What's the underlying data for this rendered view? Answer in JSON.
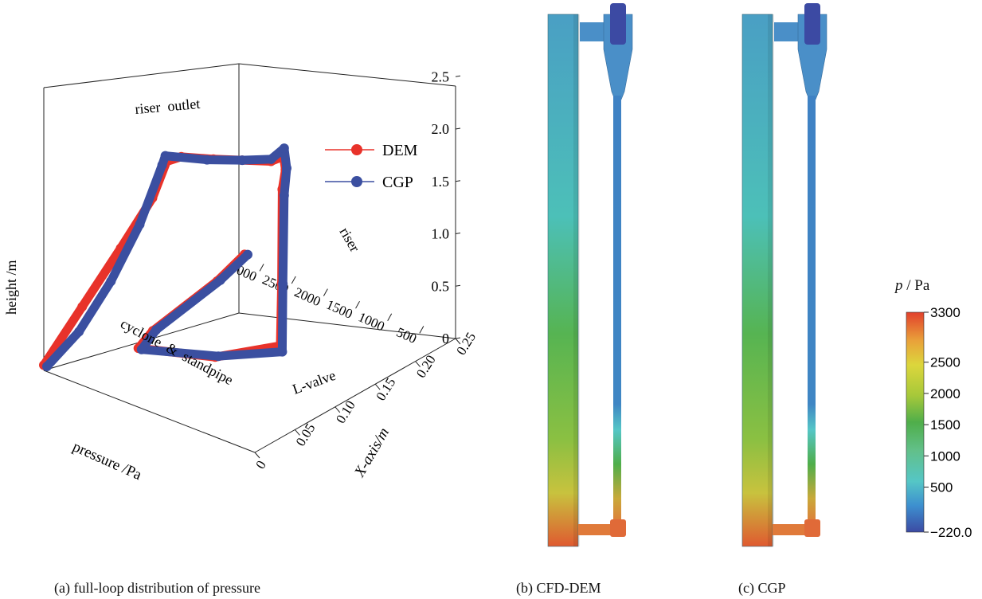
{
  "chart_data": [
    {
      "type": "line",
      "title": "",
      "zlabel": "height /m",
      "xlabel": "pressure /Pa",
      "ylabel": "X-axis/m",
      "pressure_ticks": [
        500,
        1000,
        1500,
        2000,
        2500,
        3000
      ],
      "xaxis_ticks": [
        "0",
        "0.05",
        "0.10",
        "0.15",
        "0.20",
        "0.25"
      ],
      "height_ticks": [
        "0",
        "0.5",
        "1.0",
        "1.5",
        "2.0",
        "2.5"
      ],
      "pressure_range": [
        0,
        3300
      ],
      "xaxis_range": [
        0,
        0.25
      ],
      "height_range": [
        0,
        2.7
      ],
      "legend_position": "top-right",
      "annotations": {
        "riser_outlet": "riser  outlet",
        "riser": "riser",
        "cyclone": "cyclone  &  standpipe",
        "lvalve": "L-valve"
      },
      "series": [
        {
          "name": "DEM",
          "color": "#e8322a",
          "points": [
            {
              "pressure": 3300,
              "x": 0.0,
              "height": 0.05
            },
            {
              "pressure": 2700,
              "x": 0.0,
              "height": 0.75
            },
            {
              "pressure": 2100,
              "x": 0.0,
              "height": 1.45
            },
            {
              "pressure": 1600,
              "x": 0.0,
              "height": 2.05
            },
            {
              "pressure": 1380,
              "x": 0.0,
              "height": 2.45
            },
            {
              "pressure": 1150,
              "x": 0.0,
              "height": 2.55
            },
            {
              "pressure": 900,
              "x": 0.02,
              "height": 2.5
            },
            {
              "pressure": 700,
              "x": 0.04,
              "height": 2.45
            },
            {
              "pressure": 500,
              "x": 0.06,
              "height": 2.4
            },
            {
              "pressure": 430,
              "x": 0.07,
              "height": 2.42
            },
            {
              "pressure": 400,
              "x": 0.07,
              "height": 2.3
            },
            {
              "pressure": 450,
              "x": 0.07,
              "height": 2.1
            },
            {
              "pressure": 460,
              "x": 0.07,
              "height": 1.2
            },
            {
              "pressure": 480,
              "x": 0.07,
              "height": 0.6
            },
            {
              "pressure": 1500,
              "x": 0.07,
              "height": 0.25
            },
            {
              "pressure": 2700,
              "x": 0.07,
              "height": 0.05
            },
            {
              "pressure": 2850,
              "x": 0.1,
              "height": 0.05
            },
            {
              "pressure": 3100,
              "x": 0.2,
              "height": 0.03
            },
            {
              "pressure": 3300,
              "x": 0.25,
              "height": 0.02
            }
          ]
        },
        {
          "name": "CGP",
          "color": "#3b4fa0",
          "points": [
            {
              "pressure": 3250,
              "x": 0.0,
              "height": 0.05
            },
            {
              "pressure": 2750,
              "x": 0.0,
              "height": 0.5
            },
            {
              "pressure": 2250,
              "x": 0.0,
              "height": 1.1
            },
            {
              "pressure": 1800,
              "x": 0.0,
              "height": 1.75
            },
            {
              "pressure": 1450,
              "x": 0.0,
              "height": 2.4
            },
            {
              "pressure": 1400,
              "x": 0.0,
              "height": 2.5
            },
            {
              "pressure": 1000,
              "x": 0.02,
              "height": 2.47
            },
            {
              "pressure": 700,
              "x": 0.04,
              "height": 2.45
            },
            {
              "pressure": 500,
              "x": 0.06,
              "height": 2.42
            },
            {
              "pressure": 420,
              "x": 0.07,
              "height": 2.5
            },
            {
              "pressure": 380,
              "x": 0.07,
              "height": 2.32
            },
            {
              "pressure": 420,
              "x": 0.07,
              "height": 2.05
            },
            {
              "pressure": 440,
              "x": 0.07,
              "height": 1.2
            },
            {
              "pressure": 450,
              "x": 0.07,
              "height": 0.55
            },
            {
              "pressure": 1450,
              "x": 0.07,
              "height": 0.27
            },
            {
              "pressure": 2650,
              "x": 0.07,
              "height": 0.05
            },
            {
              "pressure": 2800,
              "x": 0.1,
              "height": 0.07
            },
            {
              "pressure": 3050,
              "x": 0.2,
              "height": 0.05
            },
            {
              "pressure": 3250,
              "x": 0.25,
              "height": 0.03
            }
          ]
        }
      ]
    },
    {
      "type": "heatmap",
      "variable_label": "p",
      "unit_label": "/ Pa",
      "min": -220.0,
      "max": 3300,
      "tick_labels": [
        "3300",
        "2500",
        "2000",
        "1500",
        "1000",
        "500",
        "−220.0"
      ],
      "tick_values": [
        3300,
        2500,
        2000,
        1500,
        1000,
        500,
        -220
      ],
      "colormap": [
        "#3c4aa3",
        "#3d8fcf",
        "#55c6c6",
        "#62c08a",
        "#4fae4a",
        "#a6c83a",
        "#dcd63c",
        "#e9a23a",
        "#e2402c"
      ]
    }
  ],
  "captions": {
    "a": "(a) full-loop  distribution  of  pressure",
    "b": "(b) CFD-DEM",
    "c": "(c) CGP"
  },
  "contour_colors": {
    "outlet": "#3d7fc1",
    "cyclone": "#4a8fc8",
    "standpipe_top": "#3f82c4",
    "standpipe_bottom": "#c9a93a",
    "lvalve": "#e07a3a",
    "riser_top": "#4a9fc4",
    "riser_mid": "#4cc0b8",
    "riser_green": "#56b452",
    "riser_yellow": "#c8c23e",
    "riser_bottom": "#df5a30"
  }
}
